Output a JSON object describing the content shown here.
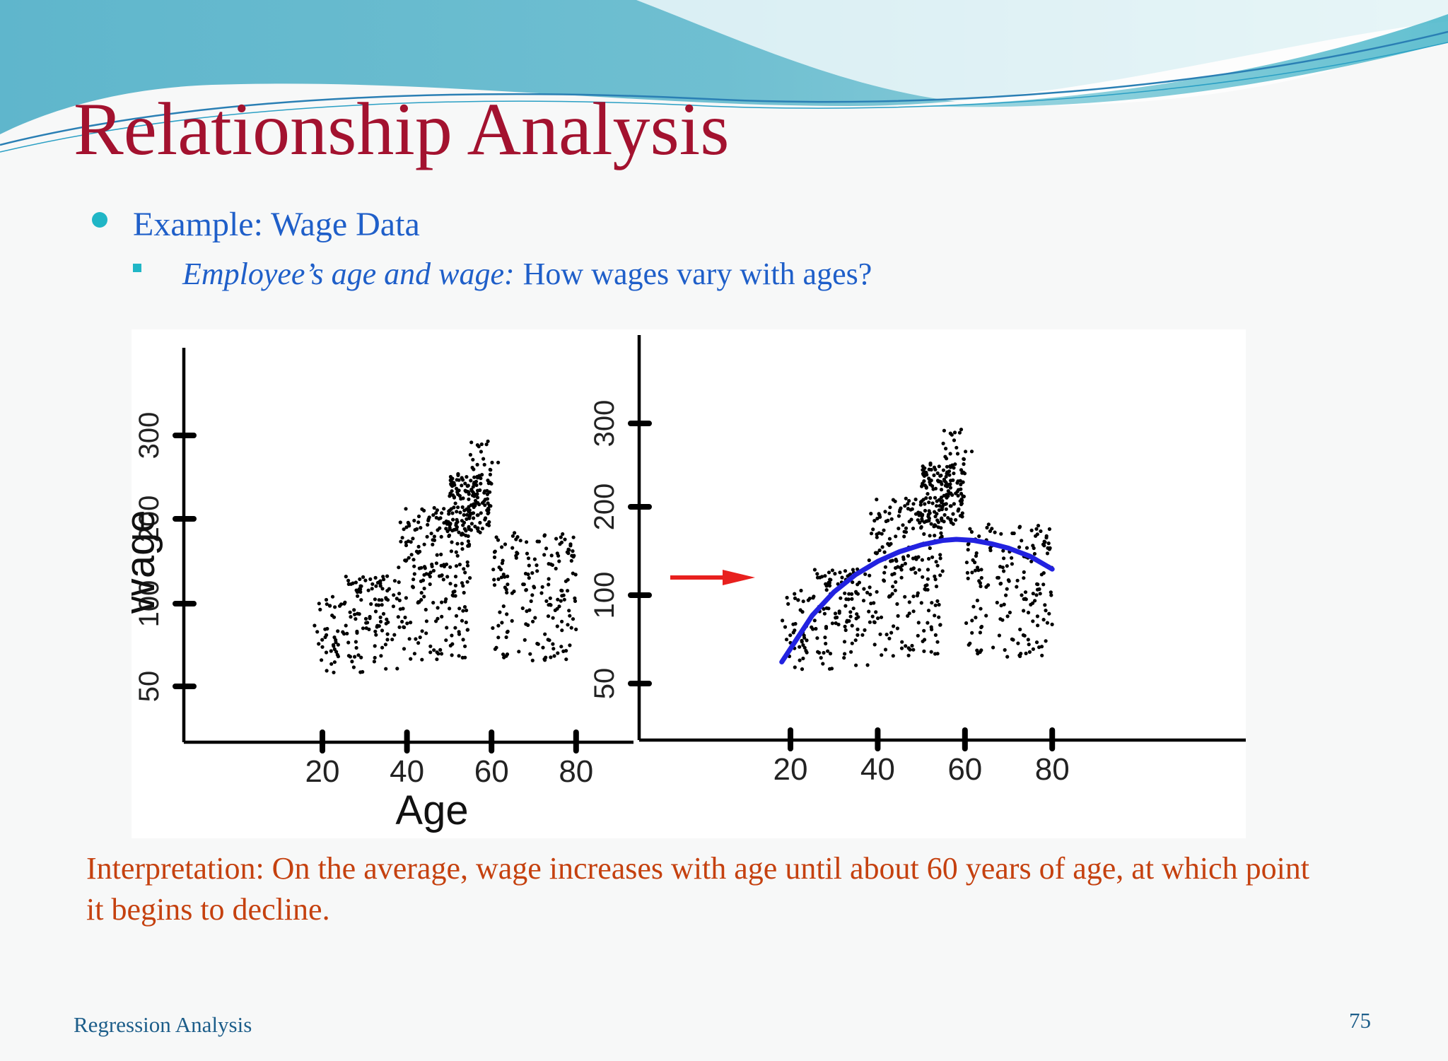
{
  "slide": {
    "title": "Relationship Analysis",
    "bullet": "Example: Wage Data",
    "sub_bullet_italic": "Employee’s age and wage:",
    "sub_bullet_text": "How wages vary with ages?",
    "interpretation": "Interpretation: On the average, wage increases with age until about 60 years of age, at which point it begins to decline.",
    "footer": "Regression Analysis",
    "page_number": "75"
  },
  "colors": {
    "title": "#a3122f",
    "bullet_text": "#1f5fc9",
    "bullet_marker": "#20b6c6",
    "interpretation": "#c5410f",
    "footer": "#1d5e8a",
    "points": "#000000",
    "trend_line": "#2222e0",
    "arrow": "#e8201e"
  },
  "chart_data": [
    {
      "type": "scatter",
      "title": "",
      "xlabel": "Age",
      "ylabel": "Wage",
      "xticks": [
        "20",
        "40",
        "60",
        "80"
      ],
      "yticks": [
        "50",
        "100",
        "200",
        "300"
      ],
      "point_description_counts": 700,
      "clusters": [
        {
          "age_range": [
            18,
            25
          ],
          "wage_range": [
            55,
            95
          ]
        },
        {
          "age_range": [
            25,
            38
          ],
          "wage_range": [
            55,
            110
          ]
        },
        {
          "age_range": [
            38,
            55
          ],
          "wage_range": [
            60,
            180
          ]
        },
        {
          "age_range": [
            50,
            60
          ],
          "wage_range": [
            150,
            230
          ]
        },
        {
          "age_range": [
            55,
            62
          ],
          "wage_range": [
            230,
            290
          ]
        },
        {
          "age_range": [
            60,
            80
          ],
          "wage_range": [
            60,
            150
          ]
        }
      ]
    },
    {
      "type": "scatter",
      "title": "",
      "xlabel": "",
      "ylabel": "",
      "xticks": [
        "20",
        "40",
        "60",
        "80"
      ],
      "yticks": [
        "50",
        "100",
        "200",
        "300"
      ],
      "trend": {
        "x": [
          18,
          25,
          30,
          35,
          40,
          45,
          50,
          55,
          58,
          62,
          66,
          70,
          75,
          80
        ],
        "y": [
          58,
          80,
          94,
          106,
          116,
          124,
          130,
          134,
          135,
          134,
          131,
          127,
          120,
          110
        ]
      }
    }
  ]
}
